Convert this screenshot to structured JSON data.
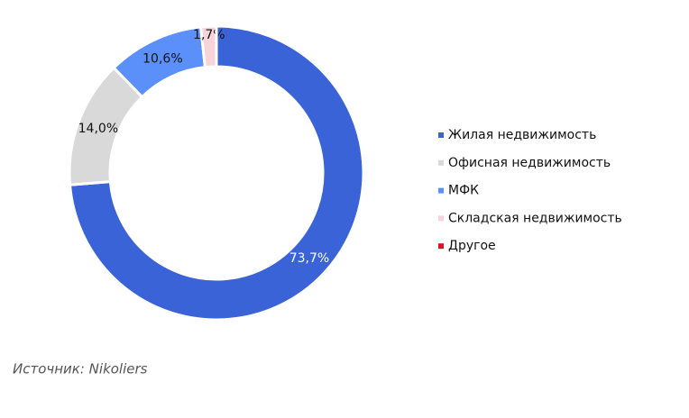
{
  "chart_data": {
    "type": "pie",
    "categories": [
      "Жилая недвижимость",
      "Офисная недвижимость",
      "МФК",
      "Складская недвижимость",
      "Другое"
    ],
    "values": [
      73.7,
      14.0,
      10.6,
      1.7,
      0
    ],
    "value_labels": [
      "73,7%",
      "14,0%",
      "10,6%",
      "1,7%",
      null
    ],
    "colors": [
      "#3a63d8",
      "#d9d9d9",
      "#5b8ff9",
      "#f9d3da",
      "#e0102a"
    ],
    "legend": "right",
    "source": "Источник: Nikoliers"
  }
}
